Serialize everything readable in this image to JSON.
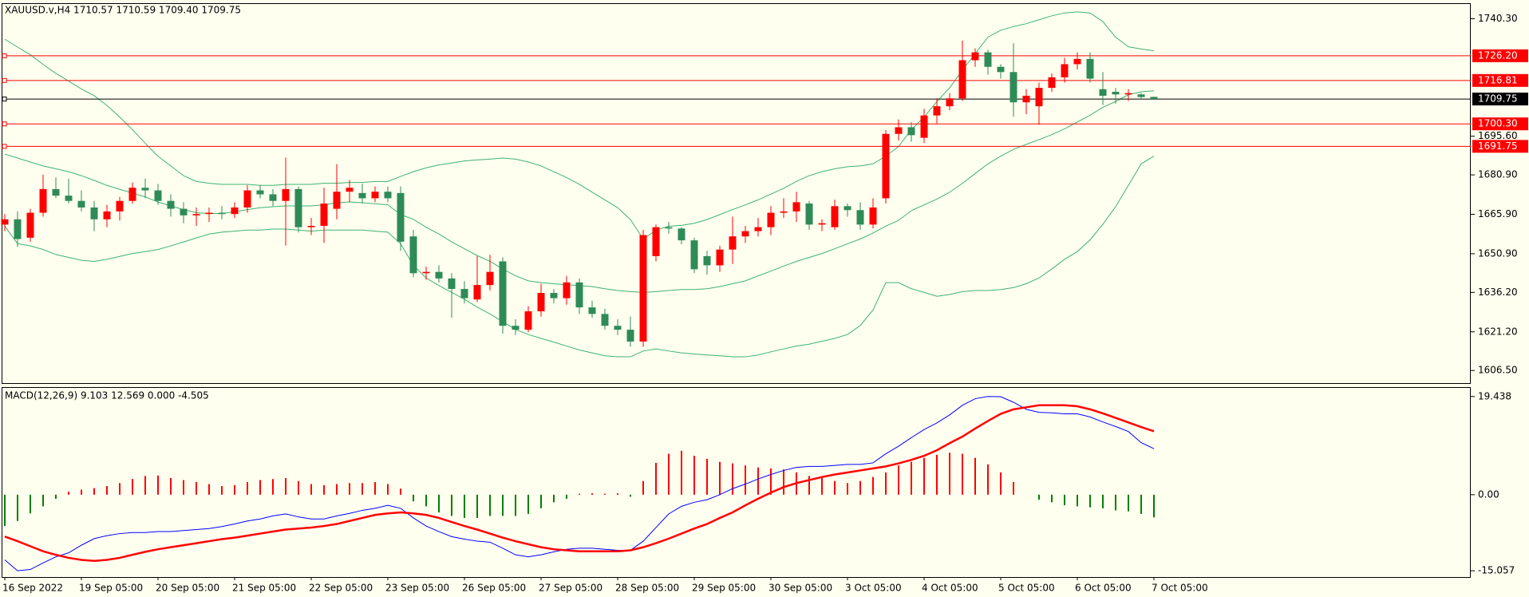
{
  "chart_data": [
    {
      "type": "candlestick",
      "title": "XAUUSD.v,H4 1710.57 1710.59 1709.40 1709.75",
      "categories": [
        "16 Sep 2022",
        null,
        null,
        null,
        null,
        null,
        "19 Sep 05:00",
        null,
        null,
        null,
        null,
        null,
        "20 Sep 05:00",
        null,
        null,
        null,
        null,
        null,
        "21 Sep 05:00",
        null,
        null,
        null,
        null,
        null,
        "22 Sep 05:00",
        null,
        null,
        null,
        null,
        null,
        "23 Sep 05:00",
        null,
        null,
        null,
        null,
        null,
        "26 Sep 05:00",
        null,
        null,
        null,
        null,
        null,
        "27 Sep 05:00",
        null,
        null,
        null,
        null,
        null,
        "28 Sep 05:00",
        null,
        null,
        null,
        null,
        null,
        "29 Sep 05:00",
        null,
        null,
        null,
        null,
        null,
        "30 Sep 05:00",
        null,
        null,
        null,
        null,
        null,
        "3 Oct 05:00",
        null,
        null,
        null,
        null,
        null,
        "4 Oct 05:00",
        null,
        null,
        null,
        null,
        null,
        "5 Oct 05:00",
        null,
        null,
        null,
        null,
        null,
        "6 Oct 05:00",
        null,
        null,
        null,
        null,
        null,
        "7 Oct 05:00"
      ],
      "open": [
        1662.0,
        1664.0,
        1657.0,
        1666.5,
        1675.5,
        1673.0,
        1671.0,
        1668.5,
        1664.0,
        1667.0,
        1671.0,
        1676.0,
        1675.0,
        1671.0,
        1668.0,
        1665.5,
        1666.0,
        1666.5,
        1666.0,
        1668.5,
        1675.0,
        1673.5,
        1671.0,
        1675.5,
        1661.0,
        1661.5,
        1668.0,
        1674.5,
        1674.0,
        1672.0,
        1674.5,
        1674.0,
        1657.5,
        1643.5,
        1644.0,
        1641.5,
        1637.5,
        1633.5,
        1639.0,
        1648.0,
        1623.5,
        1622.0,
        1629.0,
        1636.0,
        1634.0,
        1640.0,
        1630.5,
        1628.0,
        1623.5,
        1622.0,
        1617.5,
        1650.0,
        1661.0,
        1660.5,
        1656.0,
        1650.0,
        1646.5,
        1652.5,
        1657.5,
        1659.5,
        1661.0,
        1666.5,
        1667.0,
        1670.0,
        1662.0,
        1661.0,
        1669.0,
        1667.5,
        1662.0,
        1672.0,
        1696.5,
        1699.0,
        1695.0,
        1703.5,
        1707.0,
        1710.0,
        1724.5,
        1727.5,
        1722.0,
        1720.0,
        1708.5,
        1707.0,
        1714.0,
        1718.0,
        1723.0,
        1725.0,
        1713.5,
        1712.5,
        1711.5,
        1711.5,
        1710.57
      ],
      "high": [
        1666.0,
        1667.0,
        1668.0,
        1681.0,
        1680.0,
        1679.5,
        1675.0,
        1671.0,
        1669.5,
        1672.5,
        1678.0,
        1679.5,
        1677.5,
        1673.5,
        1670.5,
        1668.5,
        1668.5,
        1669.0,
        1670.5,
        1677.0,
        1677.0,
        1675.5,
        1687.5,
        1676.5,
        1664.5,
        1676.0,
        1685.0,
        1679.0,
        1677.5,
        1676.5,
        1676.5,
        1676.5,
        1660.0,
        1646.0,
        1646.5,
        1643.5,
        1640.5,
        1650.0,
        1650.5,
        1649.5,
        1626.0,
        1631.0,
        1639.5,
        1637.5,
        1642.5,
        1641.5,
        1633.0,
        1630.0,
        1626.0,
        1627.0,
        1660.0,
        1662.0,
        1663.0,
        1661.0,
        1657.0,
        1652.0,
        1654.0,
        1665.0,
        1661.5,
        1664.5,
        1669.0,
        1672.0,
        1674.5,
        1671.0,
        1664.0,
        1671.5,
        1670.0,
        1670.5,
        1672.0,
        1698.0,
        1702.0,
        1701.0,
        1706.0,
        1710.0,
        1712.0,
        1732.0,
        1729.0,
        1728.5,
        1723.0,
        1731.0,
        1713.5,
        1716.0,
        1719.5,
        1725.5,
        1727.5,
        1727.5,
        1720.0,
        1714.0,
        1713.5,
        1712.0,
        1710.59
      ],
      "low": [
        1659.5,
        1653.5,
        1655.5,
        1665.0,
        1672.0,
        1670.0,
        1667.0,
        1659.5,
        1661.0,
        1663.5,
        1670.0,
        1672.0,
        1669.5,
        1665.0,
        1662.5,
        1661.5,
        1663.0,
        1664.0,
        1664.5,
        1666.5,
        1672.0,
        1669.0,
        1654.0,
        1659.0,
        1658.0,
        1655.0,
        1664.0,
        1670.5,
        1670.0,
        1670.5,
        1670.5,
        1652.0,
        1642.0,
        1641.0,
        1640.0,
        1626.5,
        1632.0,
        1632.5,
        1637.0,
        1620.5,
        1620.0,
        1621.0,
        1627.0,
        1632.0,
        1631.5,
        1628.0,
        1626.5,
        1622.0,
        1620.0,
        1615.5,
        1615.5,
        1648.0,
        1658.5,
        1654.5,
        1643.5,
        1643.0,
        1644.0,
        1647.0,
        1655.0,
        1657.5,
        1658.0,
        1664.5,
        1663.0,
        1660.0,
        1659.5,
        1660.0,
        1665.0,
        1660.0,
        1660.5,
        1670.0,
        1694.0,
        1693.5,
        1693.0,
        1700.5,
        1705.5,
        1709.0,
        1722.0,
        1719.0,
        1717.5,
        1703.0,
        1704.0,
        1700.0,
        1712.5,
        1716.0,
        1721.0,
        1716.0,
        1707.5,
        1708.0,
        1709.0,
        1709.5,
        1709.4
      ],
      "close": [
        1664.0,
        1656.5,
        1666.5,
        1675.5,
        1673.0,
        1671.0,
        1668.5,
        1664.0,
        1667.0,
        1671.0,
        1676.0,
        1675.0,
        1671.0,
        1668.0,
        1665.5,
        1666.0,
        1666.5,
        1666.0,
        1668.5,
        1675.0,
        1673.5,
        1671.0,
        1675.5,
        1661.0,
        1661.5,
        1670.0,
        1674.5,
        1676.0,
        1672.0,
        1674.5,
        1672.0,
        1655.5,
        1643.5,
        1644.0,
        1641.5,
        1637.5,
        1634.0,
        1639.0,
        1644.0,
        1623.5,
        1622.0,
        1629.0,
        1636.0,
        1634.0,
        1640.0,
        1630.5,
        1628.0,
        1623.5,
        1622.0,
        1617.5,
        1658.0,
        1661.0,
        1660.5,
        1656.0,
        1645.0,
        1646.5,
        1652.5,
        1657.5,
        1659.5,
        1661.0,
        1666.5,
        1667.0,
        1670.5,
        1662.0,
        1662.5,
        1669.0,
        1667.5,
        1662.0,
        1668.5,
        1696.5,
        1699.0,
        1696.0,
        1703.5,
        1707.0,
        1710.0,
        1724.5,
        1727.5,
        1722.0,
        1720.0,
        1708.5,
        1711.0,
        1714.0,
        1718.0,
        1723.0,
        1725.0,
        1717.5,
        1711.0,
        1711.5,
        1712.0,
        1710.5,
        1709.75
      ],
      "up_color": "#ff0000",
      "down_color": "#2e8b57",
      "bands": [
        {
          "color": "#3cb371",
          "values": [
            1732.5,
            1729.5,
            1726.6,
            1722.9,
            1719.5,
            1716.6,
            1713.6,
            1711.0,
            1707.3,
            1702.9,
            1698.1,
            1692.9,
            1688.0,
            1684.3,
            1680.6,
            1678.4,
            1677.7,
            1677.3,
            1677.3,
            1677.3,
            1676.9,
            1676.9,
            1677.3,
            1677.3,
            1677.3,
            1677.7,
            1677.7,
            1678.0,
            1678.0,
            1678.4,
            1678.4,
            1680.3,
            1682.1,
            1683.6,
            1684.7,
            1685.4,
            1686.2,
            1686.6,
            1686.9,
            1687.3,
            1686.9,
            1685.8,
            1684.3,
            1682.1,
            1679.9,
            1677.3,
            1674.3,
            1671.4,
            1668.4,
            1663.9,
            1656.5,
            1659.9,
            1661.4,
            1661.7,
            1662.5,
            1663.9,
            1665.8,
            1667.7,
            1669.5,
            1671.4,
            1673.6,
            1675.8,
            1678.4,
            1680.6,
            1682.1,
            1683.2,
            1684.0,
            1684.3,
            1685.1,
            1688.0,
            1691.7,
            1698.1,
            1702.9,
            1708.8,
            1714.0,
            1720.7,
            1727.0,
            1733.3,
            1735.9,
            1737.3,
            1738.4,
            1739.9,
            1741.4,
            1742.5,
            1742.9,
            1742.5,
            1739.2,
            1733.3,
            1729.6,
            1728.8,
            1728.1
          ]
        },
        {
          "color": "#3cb371",
          "values": [
            1688.8,
            1687.3,
            1685.8,
            1684.3,
            1683.2,
            1682.1,
            1680.6,
            1678.8,
            1676.9,
            1675.4,
            1674.0,
            1672.5,
            1670.6,
            1669.1,
            1667.7,
            1666.5,
            1666.2,
            1666.2,
            1666.9,
            1667.7,
            1668.4,
            1668.8,
            1669.1,
            1669.1,
            1669.1,
            1669.5,
            1670.3,
            1670.6,
            1670.3,
            1669.9,
            1669.5,
            1665.8,
            1664.0,
            1661.0,
            1658.4,
            1655.4,
            1652.8,
            1650.2,
            1648.0,
            1645.1,
            1642.5,
            1640.6,
            1639.9,
            1639.5,
            1639.1,
            1638.8,
            1638.4,
            1637.6,
            1636.9,
            1636.5,
            1636.2,
            1636.5,
            1636.9,
            1637.3,
            1637.3,
            1637.6,
            1638.4,
            1639.5,
            1640.6,
            1642.5,
            1644.3,
            1646.2,
            1648.0,
            1649.5,
            1651.0,
            1652.8,
            1654.7,
            1656.5,
            1658.8,
            1661.4,
            1663.6,
            1667.3,
            1669.5,
            1671.7,
            1674.3,
            1677.7,
            1681.4,
            1685.1,
            1688.0,
            1690.6,
            1692.5,
            1694.3,
            1696.2,
            1698.4,
            1701.0,
            1703.6,
            1706.6,
            1708.8,
            1711.4,
            1712.5,
            1712.9
          ]
        },
        {
          "color": "#3cb371",
          "values": [
            1661.4,
            1654.7,
            1653.9,
            1652.5,
            1650.6,
            1649.5,
            1648.4,
            1648.0,
            1648.8,
            1649.9,
            1651.0,
            1651.7,
            1652.5,
            1653.9,
            1655.4,
            1656.9,
            1658.4,
            1659.1,
            1659.5,
            1659.9,
            1659.9,
            1660.3,
            1660.3,
            1659.9,
            1659.5,
            1659.9,
            1659.9,
            1659.9,
            1659.9,
            1659.5,
            1659.1,
            1654.7,
            1646.5,
            1641.7,
            1638.8,
            1636.2,
            1633.6,
            1630.6,
            1628.0,
            1625.1,
            1622.1,
            1620.2,
            1618.7,
            1617.3,
            1615.8,
            1614.3,
            1613.2,
            1612.1,
            1611.7,
            1611.7,
            1613.9,
            1614.7,
            1613.9,
            1613.2,
            1612.8,
            1612.4,
            1612.1,
            1611.7,
            1611.7,
            1612.4,
            1613.6,
            1614.7,
            1615.8,
            1616.5,
            1617.6,
            1618.7,
            1620.2,
            1623.6,
            1629.5,
            1639.9,
            1639.9,
            1637.6,
            1636.2,
            1634.7,
            1635.4,
            1636.5,
            1636.9,
            1636.9,
            1637.3,
            1638.0,
            1639.5,
            1641.7,
            1645.1,
            1648.8,
            1651.7,
            1656.2,
            1662.1,
            1668.8,
            1676.9,
            1685.1,
            1688.0
          ]
        }
      ],
      "levels": [
        {
          "value": 1726.2,
          "label": "1726.20",
          "color": "#ff0000"
        },
        {
          "value": 1716.81,
          "label": "1716.81",
          "color": "#ff0000"
        },
        {
          "value": 1709.75,
          "label": "1709.75",
          "color": "#000000"
        },
        {
          "value": 1700.3,
          "label": "1700.30",
          "color": "#ff0000"
        },
        {
          "value": 1691.75,
          "label": "1691.75",
          "color": "#ff0000"
        }
      ],
      "ylim": [
        1601.7,
        1746.2
      ],
      "yticks": [
        {
          "value": 1740.3,
          "label": "1740.30"
        },
        {
          "value": 1695.6,
          "label": "1695.60"
        },
        {
          "value": 1680.9,
          "label": "1680.90"
        },
        {
          "value": 1665.9,
          "label": "1665.90"
        },
        {
          "value": 1650.9,
          "label": "1650.90"
        },
        {
          "value": 1636.2,
          "label": "1636.20"
        },
        {
          "value": 1621.2,
          "label": "1621.20"
        },
        {
          "value": 1606.5,
          "label": "1606.50"
        }
      ]
    },
    {
      "type": "macd",
      "title": "MACD(12,26,9) 9.103 12.569 0.000 -4.505",
      "series": [
        {
          "color": "#0000ff",
          "values": [
            -12.9,
            -15.057,
            -14.8,
            -13.5,
            -12.3,
            -11.5,
            -10.0,
            -8.7,
            -8.1,
            -7.7,
            -7.5,
            -7.5,
            -7.3,
            -7.3,
            -7.1,
            -6.9,
            -6.7,
            -6.3,
            -5.8,
            -5.2,
            -4.8,
            -4.2,
            -3.8,
            -4.4,
            -4.8,
            -4.8,
            -4.2,
            -3.7,
            -3.1,
            -2.7,
            -2.1,
            -2.7,
            -4.6,
            -6.2,
            -7.3,
            -8.3,
            -8.8,
            -9.2,
            -9.4,
            -10.6,
            -11.9,
            -12.3,
            -11.9,
            -11.3,
            -10.8,
            -10.6,
            -10.6,
            -10.8,
            -11.0,
            -11.0,
            -9.2,
            -6.5,
            -3.8,
            -2.3,
            -1.5,
            -1.0,
            0,
            1.2,
            2.1,
            3.1,
            4.0,
            4.8,
            5.4,
            5.6,
            5.6,
            5.8,
            6.0,
            6.0,
            6.3,
            8.1,
            9.6,
            11.3,
            12.9,
            14.2,
            15.8,
            17.7,
            19.0,
            19.438,
            19.4,
            18.3,
            16.9,
            16.3,
            16.2,
            16.0,
            16.0,
            15.4,
            14.4,
            13.5,
            12.5,
            10.3,
            9.103
          ]
        },
        {
          "color": "#ff0000",
          "values": [
            -8.3,
            -9.2,
            -10.2,
            -11.2,
            -11.9,
            -12.5,
            -12.9,
            -13.1,
            -12.9,
            -12.5,
            -11.9,
            -11.3,
            -10.8,
            -10.4,
            -10.0,
            -9.6,
            -9.2,
            -8.8,
            -8.5,
            -8.1,
            -7.7,
            -7.3,
            -6.9,
            -6.7,
            -6.5,
            -6.2,
            -5.8,
            -5.2,
            -4.6,
            -4.0,
            -3.7,
            -3.5,
            -3.7,
            -4.0,
            -4.6,
            -5.4,
            -6.2,
            -6.9,
            -7.7,
            -8.5,
            -9.2,
            -9.8,
            -10.4,
            -10.8,
            -11.0,
            -11.2,
            -11.2,
            -11.2,
            -11.2,
            -11.0,
            -10.4,
            -9.6,
            -8.7,
            -7.7,
            -6.7,
            -5.8,
            -4.6,
            -3.5,
            -2.1,
            -0.8,
            0.4,
            1.5,
            2.3,
            2.9,
            3.5,
            4.0,
            4.4,
            4.8,
            5.2,
            5.6,
            6.2,
            6.9,
            7.7,
            8.8,
            10.2,
            11.5,
            13.1,
            14.6,
            16.0,
            16.9,
            17.3,
            17.7,
            17.7,
            17.7,
            17.5,
            16.9,
            16.1,
            15.2,
            14.3,
            13.4,
            12.569
          ]
        }
      ],
      "histogram": {
        "up_color": "#ff0000",
        "down_color": "#008000",
        "values": [
          -6.2,
          -5.2,
          -3.7,
          -2.3,
          -0.8,
          0.6,
          1.0,
          1.3,
          1.7,
          2.3,
          3.1,
          3.7,
          3.8,
          3.3,
          2.9,
          2.5,
          2.1,
          1.7,
          1.9,
          2.5,
          2.9,
          3.1,
          3.3,
          2.7,
          2.1,
          1.9,
          2.1,
          2.3,
          2.3,
          2.5,
          2.1,
          1.2,
          -1.3,
          -2.3,
          -3.5,
          -4.2,
          -4.6,
          -4.6,
          -4.2,
          -4.2,
          -4.2,
          -3.8,
          -2.7,
          -1.5,
          -0.8,
          0.2,
          0.3,
          0.2,
          0.3,
          -0.4,
          2.7,
          6.3,
          8.1,
          8.7,
          7.7,
          7.1,
          6.5,
          6.2,
          5.8,
          5.4,
          5.2,
          5.0,
          4.4,
          3.7,
          3.3,
          2.7,
          2.3,
          2.7,
          3.5,
          4.4,
          5.8,
          6.5,
          7.3,
          7.9,
          8.3,
          8.1,
          7.3,
          6.0,
          4.4,
          2.5,
          0,
          -1.0,
          -1.5,
          -2.1,
          -2.3,
          -2.5,
          -2.7,
          -3.1,
          -3.3,
          -3.8,
          -4.505
        ]
      },
      "ylim": [
        -16.3,
        21.3
      ],
      "yticks": [
        19.438,
        {
          "value": 0,
          "label": "0.00"
        },
        -15.057
      ]
    }
  ]
}
